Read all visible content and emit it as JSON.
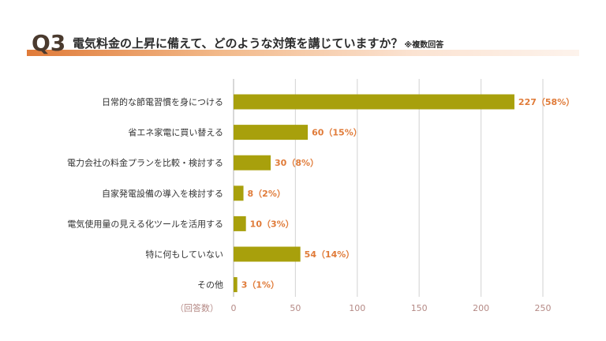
{
  "header": {
    "q_label": "Q3",
    "title": "電気料金の上昇に備えて、どのような対策を講じていますか？",
    "note": "※複数回答"
  },
  "colors": {
    "bar": "#a8a00c",
    "value_label": "#e07b39",
    "grid": "#d9d9d9",
    "tick": "#b58a86",
    "title_band": "#e07b39"
  },
  "chart_data": {
    "type": "bar",
    "orientation": "horizontal",
    "title": "電気料金の上昇に備えて、どのような対策を講じていますか？",
    "xlabel": "（回答数）",
    "ylabel": "",
    "xlim": [
      0,
      250
    ],
    "xticks": [
      0,
      50,
      100,
      150,
      200,
      250
    ],
    "grid": true,
    "categories": [
      "日常的な節電習慣を身につける",
      "省エネ家電に買い替える",
      "電力会社の料金プランを比較・検討する",
      "自家発電設備の導入を検討する",
      "電気使用量の見える化ツールを活用する",
      "特に何もしていない",
      "その他"
    ],
    "values": [
      227,
      60,
      30,
      8,
      10,
      54,
      3
    ],
    "percents": [
      "58%",
      "15%",
      "8%",
      "2%",
      "3%",
      "14%",
      "1%"
    ],
    "value_labels": [
      "227（58%）",
      "60（15%）",
      "30（8%）",
      "8（2%）",
      "10（3%）",
      "54（14%）",
      "3（1%）"
    ]
  }
}
